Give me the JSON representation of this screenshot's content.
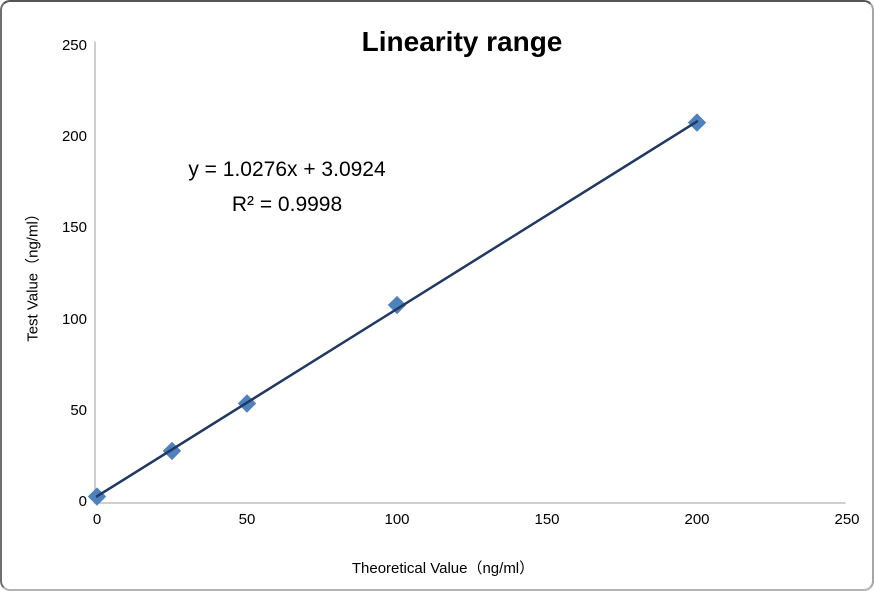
{
  "chart_data": {
    "type": "scatter",
    "title": "Linearity range",
    "xlabel": "Theoretical Value（ng/ml）",
    "ylabel": "Test Value（ng/ml）",
    "xlim": [
      0,
      250
    ],
    "ylim": [
      0,
      250
    ],
    "x_ticks": [
      0,
      50,
      100,
      150,
      200,
      250
    ],
    "y_ticks": [
      0,
      50,
      100,
      150,
      200,
      250
    ],
    "grid": false,
    "legend_position": "none",
    "points": [
      {
        "x": 0,
        "y": 3
      },
      {
        "x": 25,
        "y": 28
      },
      {
        "x": 50,
        "y": 54
      },
      {
        "x": 100,
        "y": 108
      },
      {
        "x": 200,
        "y": 208
      }
    ],
    "trendline": {
      "slope": 1.0276,
      "intercept": 3.0924,
      "r_squared": 0.9998,
      "x_start": 0,
      "x_end": 200
    },
    "annotation": {
      "equation": "y = 1.0276x + 3.0924",
      "r2": "R² = 0.9998"
    },
    "colors": {
      "marker": "#4F81BD",
      "trendline": "#1F3864",
      "axis": "#BFBFBF",
      "text": "#000000"
    }
  }
}
